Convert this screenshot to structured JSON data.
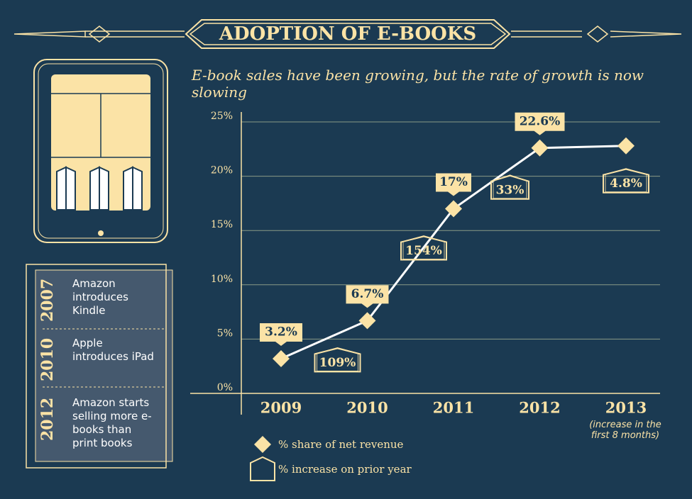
{
  "header": {
    "title": "ADOPTION OF E-BOOKS",
    "subtitle": "E-book sales have been growing, but the rate of growth is now slowing"
  },
  "timeline": [
    {
      "year": "2007",
      "text": "Amazon introduces Kindle"
    },
    {
      "year": "2010",
      "text": "Apple introduces iPad"
    },
    {
      "year": "2012",
      "text": "Amazon starts selling more e-books than print books"
    }
  ],
  "chart_data": {
    "type": "line",
    "categories": [
      "2009",
      "2010",
      "2011",
      "2012",
      "2013"
    ],
    "category_note": "(increase in the first 8 months)",
    "ylim": [
      0,
      25
    ],
    "yticks": [
      {
        "value": 0,
        "label": "0%"
      },
      {
        "value": 5,
        "label": "5%"
      },
      {
        "value": 10,
        "label": "10%"
      },
      {
        "value": 15,
        "label": "15%"
      },
      {
        "value": 20,
        "label": "20%"
      },
      {
        "value": 25,
        "label": "25%"
      }
    ],
    "grid": true,
    "series": [
      {
        "name": "% share of net revenue",
        "color": "#fbe3a6",
        "values": [
          3.2,
          6.7,
          17,
          22.6,
          22.8
        ],
        "value_labels": [
          "3.2%",
          "6.7%",
          "17%",
          "22.6%",
          null
        ]
      },
      {
        "name": "% increase on prior year",
        "color": "#fbe3a6",
        "values": [
          null,
          109,
          154,
          33,
          4.8
        ],
        "value_labels": [
          null,
          "109%",
          "154%",
          "33%",
          "4.8%"
        ]
      }
    ]
  }
}
